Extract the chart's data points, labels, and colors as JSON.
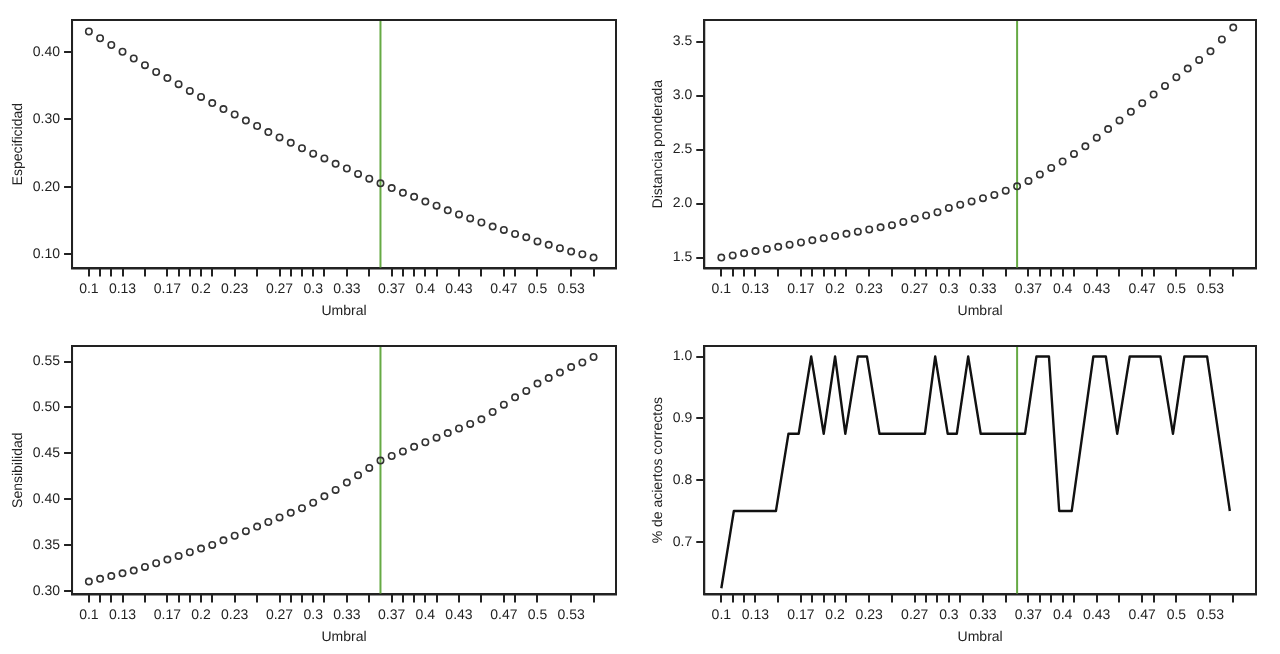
{
  "chart_data": [
    {
      "type": "scatter",
      "xlabel": "Umbral",
      "ylabel": "Especificidad",
      "marker": "circle",
      "grid": false,
      "legend": false,
      "x": [
        0.1,
        0.11,
        0.12,
        0.13,
        0.14,
        0.15,
        0.16,
        0.17,
        0.18,
        0.19,
        0.2,
        0.21,
        0.22,
        0.23,
        0.24,
        0.25,
        0.26,
        0.27,
        0.28,
        0.29,
        0.3,
        0.31,
        0.32,
        0.33,
        0.34,
        0.35,
        0.36,
        0.37,
        0.38,
        0.39,
        0.4,
        0.41,
        0.42,
        0.43,
        0.44,
        0.45,
        0.46,
        0.47,
        0.48,
        0.49,
        0.5,
        0.51,
        0.52,
        0.53,
        0.54,
        0.55
      ],
      "series": [
        {
          "color": "#333333",
          "values": [
            0.43,
            0.42,
            0.41,
            0.4,
            0.39,
            0.38,
            0.37,
            0.361,
            0.352,
            0.342,
            0.333,
            0.324,
            0.315,
            0.307,
            0.298,
            0.29,
            0.281,
            0.273,
            0.265,
            0.257,
            0.249,
            0.242,
            0.234,
            0.227,
            0.219,
            0.212,
            0.205,
            0.198,
            0.191,
            0.185,
            0.178,
            0.172,
            0.165,
            0.159,
            0.153,
            0.147,
            0.141,
            0.136,
            0.13,
            0.125,
            0.119,
            0.114,
            0.109,
            0.104,
            0.1,
            0.095
          ]
        }
      ],
      "xlim": [
        0.085,
        0.57
      ],
      "ylim": [
        0.079,
        0.447
      ],
      "xticks": [
        0.1,
        {
          "value": 0.11,
          "label": null
        },
        {
          "value": 0.12,
          "label": null
        },
        0.13,
        {
          "value": 0.15,
          "label": null
        },
        0.17,
        {
          "value": 0.18,
          "label": null
        },
        {
          "value": 0.19,
          "label": null
        },
        0.2,
        {
          "value": 0.21,
          "label": null
        },
        0.23,
        {
          "value": 0.25,
          "label": null
        },
        0.27,
        {
          "value": 0.28,
          "label": null
        },
        {
          "value": 0.29,
          "label": null
        },
        0.3,
        {
          "value": 0.31,
          "label": null
        },
        0.33,
        {
          "value": 0.35,
          "label": null
        },
        0.37,
        {
          "value": 0.38,
          "label": null
        },
        {
          "value": 0.39,
          "label": null
        },
        0.4,
        {
          "value": 0.41,
          "label": null
        },
        0.43,
        {
          "value": 0.45,
          "label": null
        },
        0.47,
        {
          "value": 0.48,
          "label": null
        },
        0.5,
        0.53,
        {
          "value": 0.55,
          "label": null
        }
      ],
      "yticks": [
        {
          "value": 0.1,
          "label": "0.10"
        },
        {
          "value": 0.2,
          "label": "0.20"
        },
        {
          "value": 0.3,
          "label": "0.30"
        },
        {
          "value": 0.4,
          "label": "0.40"
        }
      ],
      "ref_lines": [
        {
          "axis": "x",
          "value": 0.36,
          "color": "#66aa44"
        }
      ]
    },
    {
      "type": "scatter",
      "xlabel": "Umbral",
      "ylabel": "Distancia ponderada",
      "marker": "circle",
      "grid": false,
      "legend": false,
      "x": [
        0.1,
        0.11,
        0.12,
        0.13,
        0.14,
        0.15,
        0.16,
        0.17,
        0.18,
        0.19,
        0.2,
        0.21,
        0.22,
        0.23,
        0.24,
        0.25,
        0.26,
        0.27,
        0.28,
        0.29,
        0.3,
        0.31,
        0.32,
        0.33,
        0.34,
        0.35,
        0.36,
        0.37,
        0.38,
        0.39,
        0.4,
        0.41,
        0.42,
        0.43,
        0.44,
        0.45,
        0.46,
        0.47,
        0.48,
        0.49,
        0.5,
        0.51,
        0.52,
        0.53,
        0.54,
        0.55
      ],
      "series": [
        {
          "color": "#333333",
          "values": [
            1.5,
            1.52,
            1.54,
            1.56,
            1.58,
            1.6,
            1.62,
            1.64,
            1.66,
            1.68,
            1.7,
            1.72,
            1.74,
            1.76,
            1.78,
            1.8,
            1.83,
            1.86,
            1.89,
            1.92,
            1.96,
            1.99,
            2.02,
            2.05,
            2.08,
            2.12,
            2.16,
            2.21,
            2.27,
            2.33,
            2.39,
            2.46,
            2.53,
            2.61,
            2.69,
            2.77,
            2.85,
            2.93,
            3.01,
            3.09,
            3.17,
            3.25,
            3.33,
            3.41,
            3.52,
            3.63
          ]
        }
      ],
      "xlim": [
        0.085,
        0.57
      ],
      "ylim": [
        1.4,
        3.7
      ],
      "xticks": [
        0.1,
        {
          "value": 0.11,
          "label": null
        },
        {
          "value": 0.12,
          "label": null
        },
        0.13,
        {
          "value": 0.15,
          "label": null
        },
        0.17,
        {
          "value": 0.18,
          "label": null
        },
        {
          "value": 0.19,
          "label": null
        },
        0.2,
        {
          "value": 0.21,
          "label": null
        },
        0.23,
        {
          "value": 0.25,
          "label": null
        },
        0.27,
        {
          "value": 0.28,
          "label": null
        },
        {
          "value": 0.29,
          "label": null
        },
        0.3,
        {
          "value": 0.31,
          "label": null
        },
        0.33,
        {
          "value": 0.35,
          "label": null
        },
        0.37,
        {
          "value": 0.38,
          "label": null
        },
        {
          "value": 0.39,
          "label": null
        },
        0.4,
        {
          "value": 0.41,
          "label": null
        },
        0.43,
        {
          "value": 0.45,
          "label": null
        },
        0.47,
        {
          "value": 0.48,
          "label": null
        },
        0.5,
        0.53,
        {
          "value": 0.55,
          "label": null
        }
      ],
      "yticks": [
        1.5,
        {
          "value": 2,
          "label": "2.0"
        },
        2.5,
        {
          "value": 3,
          "label": "3.0"
        },
        3.5
      ],
      "ref_lines": [
        {
          "axis": "x",
          "value": 0.36,
          "color": "#66aa44"
        }
      ]
    },
    {
      "type": "scatter",
      "xlabel": "Umbral",
      "ylabel": "Sensibilidad",
      "marker": "circle",
      "grid": false,
      "legend": false,
      "x": [
        0.1,
        0.11,
        0.12,
        0.13,
        0.14,
        0.15,
        0.16,
        0.17,
        0.18,
        0.19,
        0.2,
        0.21,
        0.22,
        0.23,
        0.24,
        0.25,
        0.26,
        0.27,
        0.28,
        0.29,
        0.3,
        0.31,
        0.32,
        0.33,
        0.34,
        0.35,
        0.36,
        0.37,
        0.38,
        0.39,
        0.4,
        0.41,
        0.42,
        0.43,
        0.44,
        0.45,
        0.46,
        0.47,
        0.48,
        0.49,
        0.5,
        0.51,
        0.52,
        0.53,
        0.54,
        0.55
      ],
      "series": [
        {
          "color": "#333333",
          "values": [
            0.31,
            0.313,
            0.316,
            0.319,
            0.322,
            0.326,
            0.33,
            0.334,
            0.338,
            0.342,
            0.346,
            0.35,
            0.355,
            0.36,
            0.365,
            0.37,
            0.375,
            0.38,
            0.385,
            0.39,
            0.396,
            0.403,
            0.41,
            0.418,
            0.426,
            0.434,
            0.442,
            0.447,
            0.452,
            0.457,
            0.462,
            0.467,
            0.472,
            0.477,
            0.482,
            0.487,
            0.495,
            0.503,
            0.511,
            0.518,
            0.526,
            0.532,
            0.538,
            0.544,
            0.549,
            0.555
          ]
        }
      ],
      "xlim": [
        0.085,
        0.57
      ],
      "ylim": [
        0.296,
        0.567
      ],
      "xticks": [
        0.1,
        {
          "value": 0.11,
          "label": null
        },
        {
          "value": 0.12,
          "label": null
        },
        0.13,
        {
          "value": 0.15,
          "label": null
        },
        0.17,
        {
          "value": 0.18,
          "label": null
        },
        {
          "value": 0.19,
          "label": null
        },
        0.2,
        {
          "value": 0.21,
          "label": null
        },
        0.23,
        {
          "value": 0.25,
          "label": null
        },
        0.27,
        {
          "value": 0.28,
          "label": null
        },
        {
          "value": 0.29,
          "label": null
        },
        0.3,
        {
          "value": 0.31,
          "label": null
        },
        0.33,
        {
          "value": 0.35,
          "label": null
        },
        0.37,
        {
          "value": 0.38,
          "label": null
        },
        {
          "value": 0.39,
          "label": null
        },
        0.4,
        {
          "value": 0.41,
          "label": null
        },
        0.43,
        {
          "value": 0.45,
          "label": null
        },
        0.47,
        {
          "value": 0.48,
          "label": null
        },
        0.5,
        0.53,
        {
          "value": 0.55,
          "label": null
        }
      ],
      "yticks": [
        {
          "value": 0.3,
          "label": "0.30"
        },
        0.35,
        {
          "value": 0.4,
          "label": "0.40"
        },
        0.45,
        {
          "value": 0.5,
          "label": "0.50"
        },
        0.55
      ],
      "ref_lines": [
        {
          "axis": "x",
          "value": 0.36,
          "color": "#66aa44"
        }
      ]
    },
    {
      "type": "line",
      "xlabel": "Umbral",
      "ylabel": "% de aciertos correctos",
      "marker": "none",
      "line_style": "solid",
      "grid": false,
      "legend": false,
      "x": [
        0.1,
        0.111,
        0.148,
        0.159,
        0.168,
        0.179,
        0.19,
        0.2,
        0.209,
        0.22,
        0.228,
        0.239,
        0.279,
        0.288,
        0.299,
        0.307,
        0.317,
        0.328,
        0.367,
        0.377,
        0.388,
        0.397,
        0.408,
        0.427,
        0.438,
        0.448,
        0.459,
        0.486,
        0.497,
        0.507,
        0.527,
        0.547
      ],
      "series": [
        {
          "color": "#111111",
          "values": [
            0.625,
            0.75,
            0.75,
            0.875,
            0.875,
            1.0,
            0.875,
            1.0,
            0.875,
            1.0,
            1.0,
            0.875,
            0.875,
            1.0,
            0.875,
            0.875,
            1.0,
            0.875,
            0.875,
            1.0,
            1.0,
            0.75,
            0.75,
            1.0,
            1.0,
            0.875,
            1.0,
            1.0,
            0.875,
            1.0,
            1.0,
            0.75
          ]
        }
      ],
      "xlim": [
        0.085,
        0.57
      ],
      "ylim": [
        0.615,
        1.017
      ],
      "xticks": [
        0.1,
        {
          "value": 0.11,
          "label": null
        },
        {
          "value": 0.12,
          "label": null
        },
        0.13,
        {
          "value": 0.15,
          "label": null
        },
        0.17,
        {
          "value": 0.18,
          "label": null
        },
        {
          "value": 0.19,
          "label": null
        },
        0.2,
        {
          "value": 0.21,
          "label": null
        },
        0.23,
        {
          "value": 0.25,
          "label": null
        },
        0.27,
        {
          "value": 0.28,
          "label": null
        },
        {
          "value": 0.29,
          "label": null
        },
        0.3,
        {
          "value": 0.31,
          "label": null
        },
        0.33,
        {
          "value": 0.35,
          "label": null
        },
        0.37,
        {
          "value": 0.38,
          "label": null
        },
        {
          "value": 0.39,
          "label": null
        },
        0.4,
        {
          "value": 0.41,
          "label": null
        },
        0.43,
        {
          "value": 0.45,
          "label": null
        },
        0.47,
        {
          "value": 0.48,
          "label": null
        },
        0.5,
        0.53,
        {
          "value": 0.55,
          "label": null
        }
      ],
      "yticks": [
        0.7,
        0.8,
        0.9,
        {
          "value": 1.0,
          "label": "1.0"
        }
      ],
      "ref_lines": [
        {
          "axis": "x",
          "value": 0.36,
          "color": "#66aa44"
        }
      ]
    }
  ]
}
